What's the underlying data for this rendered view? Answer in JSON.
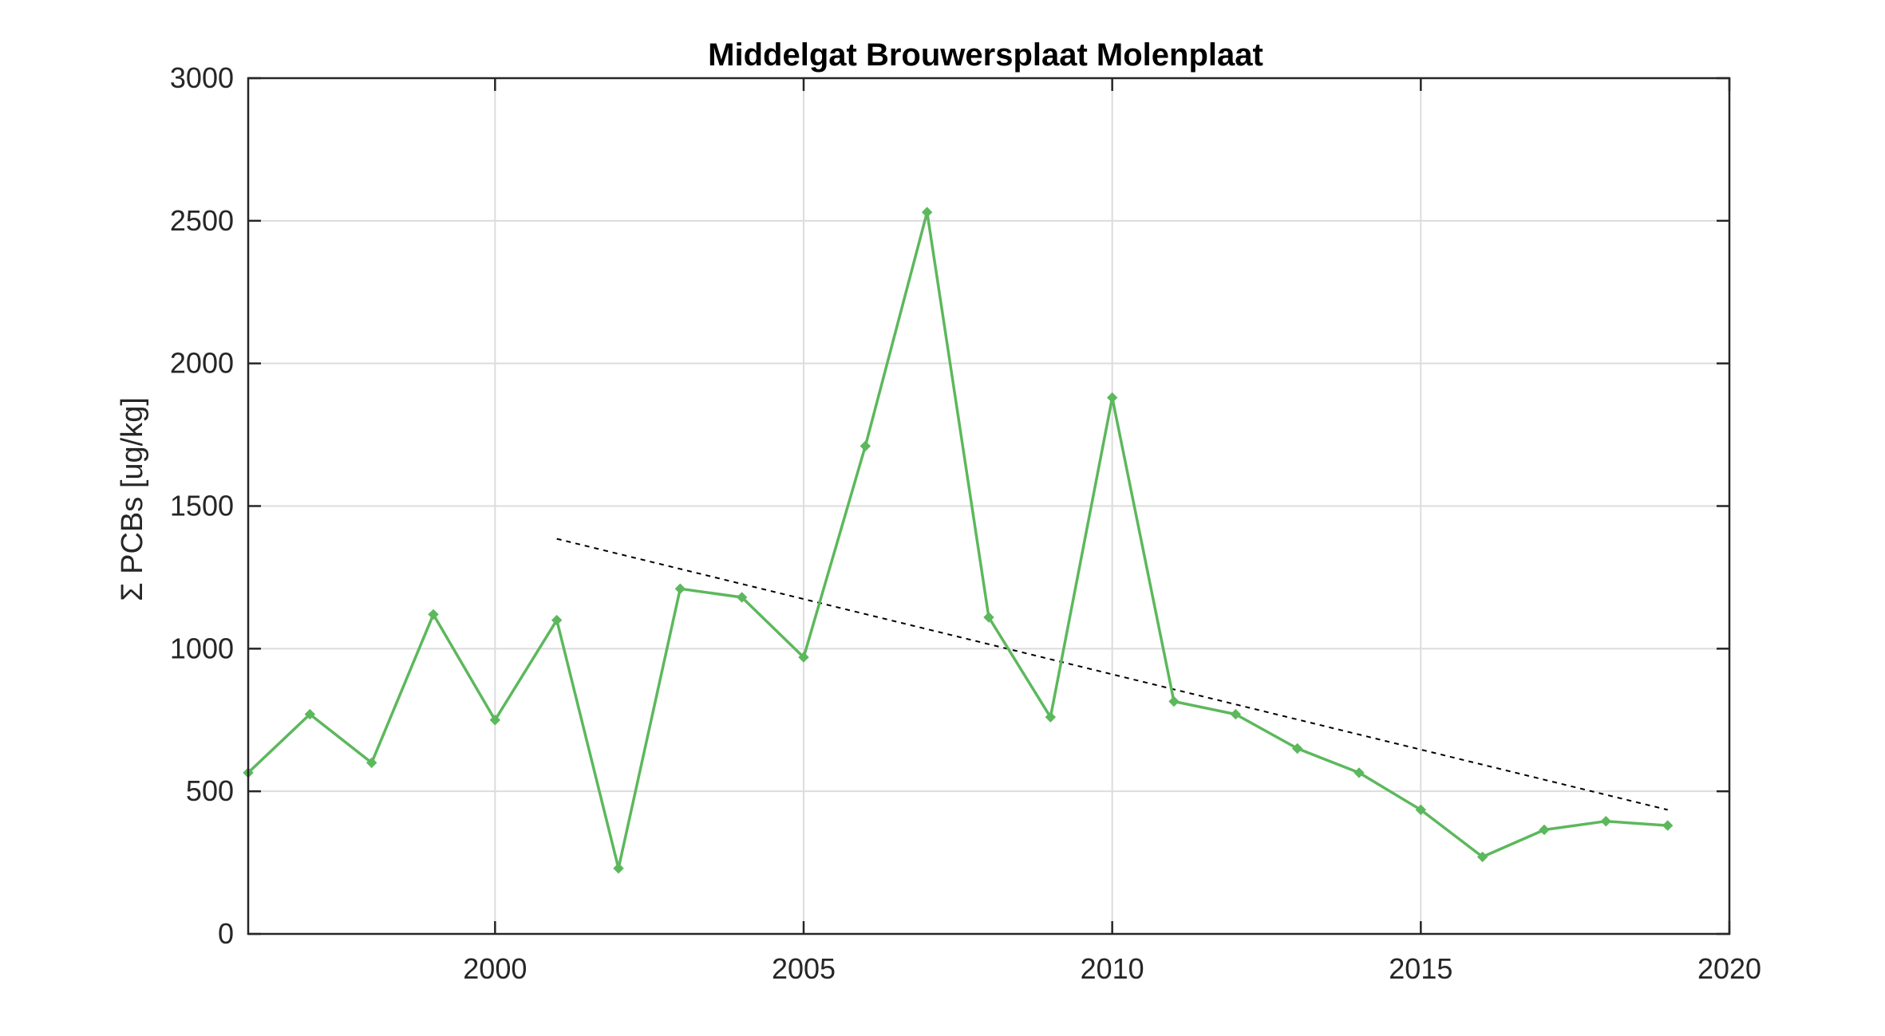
{
  "chart_data": {
    "type": "line",
    "title": "Middelgat Brouwersplaat Molenplaat",
    "xlabel": "",
    "ylabel": "Σ PCBs [ug/kg]",
    "xlim": [
      1996,
      2020
    ],
    "ylim": [
      0,
      3000
    ],
    "x_ticks": [
      2000,
      2005,
      2010,
      2015,
      2020
    ],
    "y_ticks": [
      0,
      500,
      1000,
      1500,
      2000,
      2500,
      3000
    ],
    "grid": true,
    "colors": {
      "series": "#5cb85c",
      "trend": "#000000",
      "grid": "#dcdcdc",
      "axes": "#262626"
    },
    "series": [
      {
        "kind": "measured",
        "x": [
          1996,
          1997,
          1998,
          1999,
          2000,
          2001,
          2002,
          2003,
          2004,
          2005,
          2006,
          2007,
          2008,
          2009,
          2010,
          2011,
          2012,
          2013,
          2014,
          2015,
          2016,
          2017,
          2018,
          2019
        ],
        "values": [
          565,
          770,
          600,
          1120,
          750,
          1100,
          230,
          1210,
          1180,
          970,
          1710,
          2530,
          1110,
          760,
          1880,
          815,
          770,
          650,
          565,
          435,
          270,
          365,
          395,
          380
        ]
      },
      {
        "kind": "trend",
        "style": "dashed",
        "x": [
          2001,
          2019
        ],
        "values": [
          1385,
          435
        ]
      }
    ]
  }
}
